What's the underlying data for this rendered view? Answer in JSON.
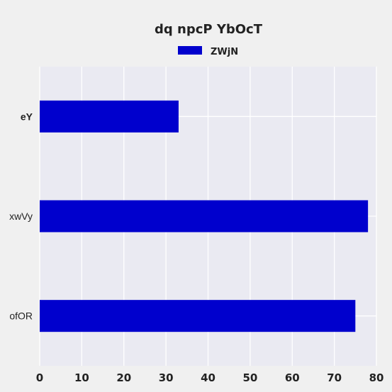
{
  "chart_data": {
    "type": "bar",
    "orientation": "horizontal",
    "title": "dq npcP YbOcT",
    "xlabel": "",
    "ylabel": "",
    "categories": [
      "eY",
      "xwVy",
      "ofOR"
    ],
    "category_bold": [
      true,
      false,
      false
    ],
    "series": [
      {
        "name": "ZWjN",
        "values": [
          33,
          78,
          75
        ],
        "color": "#0000cd"
      }
    ],
    "xlim": [
      0,
      80
    ],
    "xticks": [
      "0",
      "10",
      "20",
      "30",
      "40",
      "50",
      "60",
      "70",
      "80"
    ],
    "grid": true,
    "legend": "top-center",
    "plot_background": "#eaeaf2",
    "figure_background": "#f0f0f0"
  }
}
